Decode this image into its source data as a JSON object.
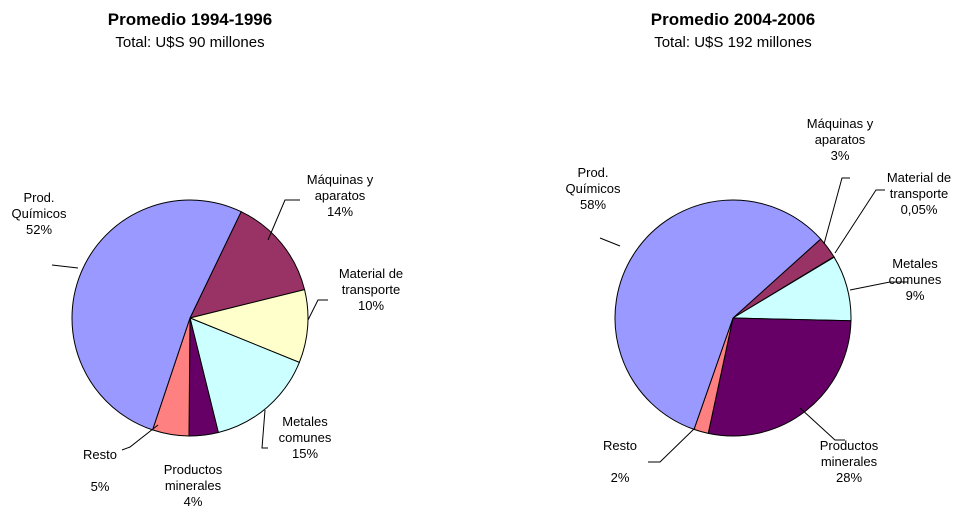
{
  "chart_data": [
    {
      "type": "pie",
      "title": "Promedio 1994-1996",
      "subtitle": "Total: U$S 90 millones",
      "categories": [
        "Máquinas y aparatos",
        "Material de transporte",
        "Metales comunes",
        "Productos minerales",
        "Resto",
        "Prod. Químicos"
      ],
      "values": [
        14,
        10,
        15,
        4,
        5,
        52
      ],
      "value_labels": [
        "14%",
        "10%",
        "15%",
        "4%",
        "5%",
        "52%"
      ],
      "colors": [
        "#993366",
        "#ffffcc",
        "#ccffff",
        "#660066",
        "#ff8080",
        "#9999ff"
      ]
    },
    {
      "type": "pie",
      "title": "Promedio 2004-2006",
      "subtitle": "Total: U$S 192 millones",
      "categories": [
        "Máquinas y aparatos",
        "Material de transporte",
        "Metales comunes",
        "Productos minerales",
        "Resto",
        "Prod. Químicos"
      ],
      "values": [
        3,
        0.05,
        9,
        28,
        2,
        58
      ],
      "value_labels": [
        "3%",
        "0,05%",
        "9%",
        "28%",
        "2%",
        "58%"
      ],
      "colors": [
        "#993366",
        "#ffffcc",
        "#ccffff",
        "#660066",
        "#ff8080",
        "#9999ff"
      ]
    }
  ]
}
